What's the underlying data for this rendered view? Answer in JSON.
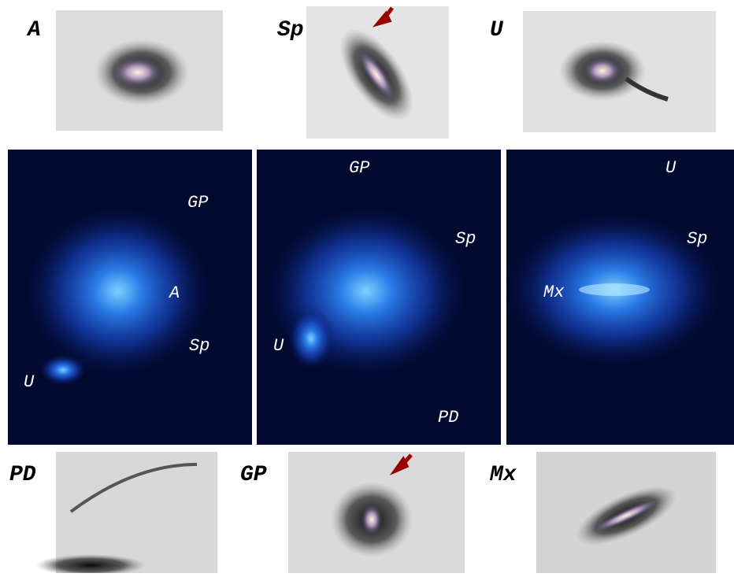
{
  "top_panels": [
    {
      "label": "A"
    },
    {
      "label": "Sp"
    },
    {
      "label": "U"
    }
  ],
  "simulation_panels": [
    {
      "labels": [
        "GP",
        "A",
        "Sp",
        "U"
      ]
    },
    {
      "labels": [
        "GP",
        "Sp",
        "U",
        "PD"
      ]
    },
    {
      "labels": [
        "U",
        "Sp",
        "Mx"
      ]
    }
  ],
  "bottom_panels": [
    {
      "label": "PD"
    },
    {
      "label": "GP"
    },
    {
      "label": "Mx"
    }
  ]
}
